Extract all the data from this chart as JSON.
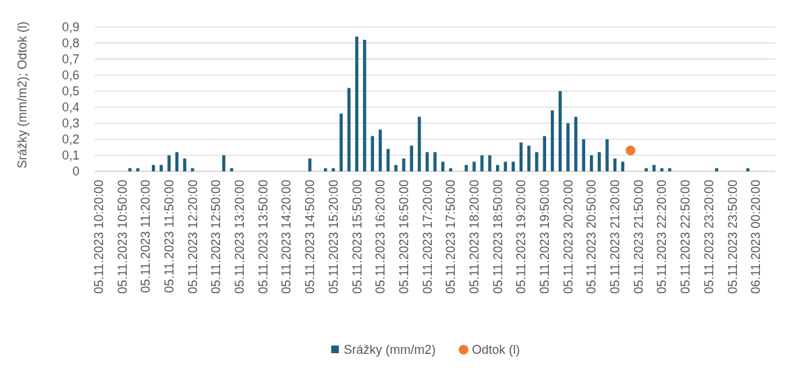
{
  "chart_data": {
    "type": "bar",
    "ylabel": "Srážky (mm/m2); Odtok (l)",
    "categories": [
      "05.11.2023 10:20:00",
      null,
      null,
      "05.11.2023 10:50:00",
      null,
      null,
      "05.11.2023 11:20:00",
      null,
      null,
      "05.11.2023 11:50:00",
      null,
      null,
      "05.11.2023 12:20:00",
      null,
      null,
      "05.11.2023 12:50:00",
      null,
      null,
      "05.11.2023 13:20:00",
      null,
      null,
      "05.11.2023 13:50:00",
      null,
      null,
      "05.11.2023 14:20:00",
      null,
      null,
      "05.11.2023 14:50:00",
      null,
      null,
      "05.11.2023 15:20:00",
      null,
      null,
      "05.11.2023 15:50:00",
      null,
      null,
      "05.11.2023 16:20:00",
      null,
      null,
      "05.11.2023 16:50:00",
      null,
      null,
      "05.11.2023 17:20:00",
      null,
      null,
      "05.11.2023 17:50:00",
      null,
      null,
      "05.11.2023 18:20:00",
      null,
      null,
      "05.11.2023 18:50:00",
      null,
      null,
      "05.11.2023 19:20:00",
      null,
      null,
      "05.11.2023 19:50:00",
      null,
      null,
      "05.11.2023 20:20:00",
      null,
      null,
      "05.11.2023 20:50:00",
      null,
      null,
      "05.11.2023 21:20:00",
      null,
      null,
      "05.11.2023 21:50:00",
      null,
      null,
      "05.11.2023 22:20:00",
      null,
      null,
      "05.11.2023 22:50:00",
      null,
      null,
      "05.11.2023 23:20:00",
      null,
      null,
      "05.11.2023 23:50:00",
      null,
      null,
      "06.11.2023 00:20:00",
      null,
      null
    ],
    "series": [
      {
        "name": "Srážky (mm/m2)",
        "color": "#1d5f80",
        "values": [
          0,
          0,
          0,
          0,
          0.02,
          0.02,
          0,
          0.04,
          0.04,
          0.1,
          0.12,
          0.08,
          0.02,
          0,
          0,
          0,
          0.1,
          0.02,
          0,
          0,
          0,
          0,
          0,
          0,
          0,
          0,
          0,
          0.08,
          0,
          0.02,
          0.02,
          0.36,
          0.52,
          0.84,
          0.82,
          0.22,
          0.26,
          0.14,
          0.04,
          0.08,
          0.16,
          0.34,
          0.12,
          0.12,
          0.06,
          0.02,
          0,
          0.04,
          0.06,
          0.1,
          0.1,
          0.04,
          0.06,
          0.06,
          0.18,
          0.16,
          0.12,
          0.22,
          0.38,
          0.5,
          0.3,
          0.34,
          0.2,
          0.1,
          0.12,
          0.2,
          0.08,
          0.06,
          0,
          0,
          0.02,
          0.04,
          0.02,
          0.02,
          0,
          0,
          0,
          0,
          0,
          0.02,
          0,
          0,
          0,
          0.02,
          0,
          0,
          0
        ]
      },
      {
        "name": "Odtok (l)",
        "type": "scatter",
        "color": "#ed7d31",
        "values": [
          null,
          null,
          null,
          null,
          null,
          null,
          null,
          null,
          null,
          null,
          null,
          null,
          null,
          null,
          null,
          null,
          null,
          null,
          null,
          null,
          null,
          null,
          null,
          null,
          null,
          null,
          null,
          null,
          null,
          null,
          null,
          null,
          null,
          null,
          null,
          null,
          null,
          null,
          null,
          null,
          null,
          null,
          null,
          null,
          null,
          null,
          null,
          null,
          null,
          null,
          null,
          null,
          null,
          null,
          null,
          null,
          null,
          null,
          null,
          null,
          null,
          null,
          null,
          null,
          null,
          null,
          null,
          null,
          0.13,
          null,
          null,
          null,
          null,
          null,
          null,
          null,
          null,
          null,
          null,
          null,
          null,
          null,
          null,
          null,
          null,
          null,
          null
        ]
      }
    ],
    "ylim": [
      0,
      0.9
    ],
    "yticks": [
      0,
      {
        "value": 0.1,
        "label": "0,1"
      },
      {
        "value": 0.2,
        "label": "0,2"
      },
      {
        "value": 0.3,
        "label": "0,3"
      },
      {
        "value": 0.4,
        "label": "0,4"
      },
      {
        "value": 0.5,
        "label": "0,5"
      },
      {
        "value": 0.6,
        "label": "0,6"
      },
      {
        "value": 0.7,
        "label": "0,7"
      },
      {
        "value": 0.8,
        "label": "0,8"
      },
      {
        "value": 0.9,
        "label": "0,9"
      }
    ],
    "grid": "y",
    "legend": "bottom",
    "marker": "circle"
  }
}
